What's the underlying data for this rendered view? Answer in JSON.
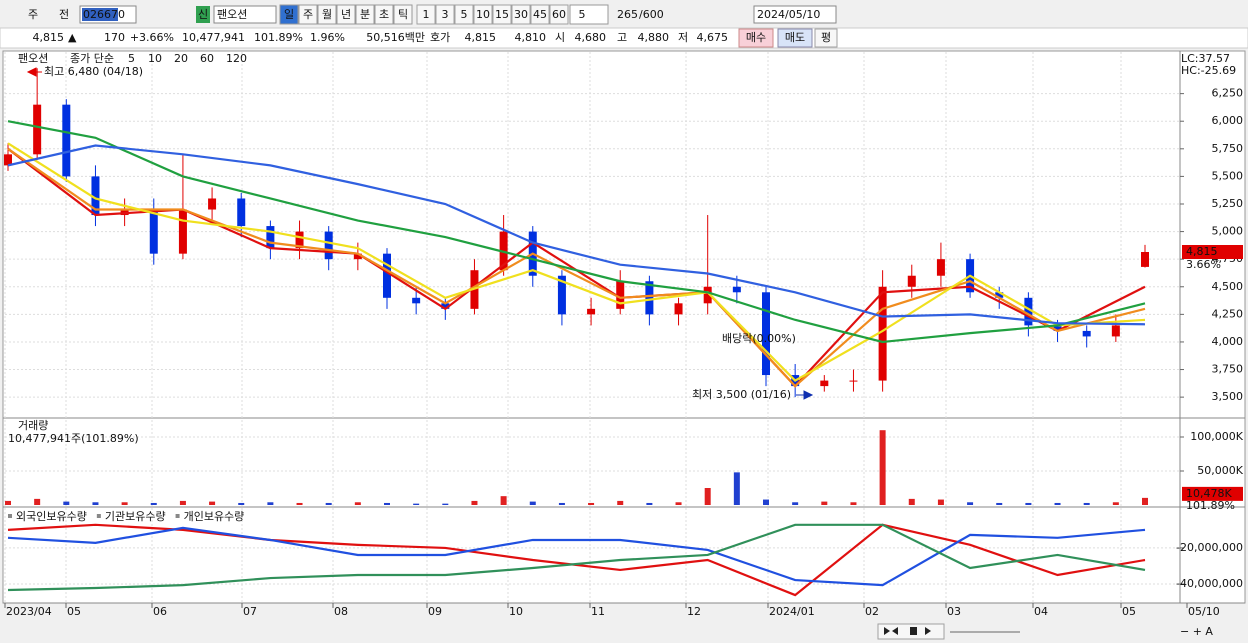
{
  "toolbar": {
    "market": "주",
    "prev": "전",
    "code": "026670",
    "badge": "신",
    "name": "팬오션",
    "periods": [
      "일",
      "주",
      "월",
      "년",
      "분",
      "초",
      "틱"
    ],
    "intervals": [
      "1",
      "3",
      "5",
      "10",
      "15",
      "30",
      "45",
      "60"
    ],
    "count": "5",
    "shown": "265",
    "total": "/600",
    "date": "2024/05/10"
  },
  "quote": {
    "price": "4,815",
    "arrow": "▲",
    "change": "170",
    "change_pct": "+3.66%",
    "volume": "10,477,941",
    "volume_ratio": "101.89%",
    "turnover": "1.96%",
    "amount": "50,516백만",
    "bid_label": "호가",
    "ask": "4,815",
    "bid": "4,810",
    "open_label": "시",
    "open": "4,680",
    "high_label": "고",
    "high": "4,880",
    "low_label": "저",
    "low": "4,675",
    "buy": "매수",
    "sell": "매도",
    "avg": "평"
  },
  "x_axis": {
    "labels": [
      "2023/04",
      "05",
      "06",
      "07",
      "08",
      "09",
      "10",
      "11",
      "12",
      "2024/01",
      "02",
      "03",
      "04",
      "05",
      "05/10"
    ]
  },
  "chart_data": [
    {
      "type": "candlestick",
      "title": "팬오션",
      "ma_label": "종가 단순",
      "open": [
        5600,
        5700,
        6150,
        5500,
        5150,
        5200,
        4800,
        5200,
        5300,
        5050,
        4850,
        5000,
        4750,
        4800,
        4400,
        4350,
        4300,
        4650,
        5000,
        4600,
        4250,
        4300,
        4550,
        4250,
        4350,
        4500,
        4450,
        3700,
        3600,
        3650,
        3650,
        4500,
        4600,
        4750,
        4450,
        4400,
        4150,
        4100,
        4050,
        4680
      ],
      "high": [
        5800,
        6480,
        6200,
        5600,
        5300,
        5300,
        5700,
        5400,
        5350,
        5100,
        5100,
        5050,
        4900,
        4850,
        4500,
        4400,
        4750,
        5150,
        5050,
        4650,
        4400,
        4650,
        4600,
        4400,
        5150,
        4600,
        4500,
        3800,
        3700,
        3750,
        4650,
        4700,
        4900,
        4800,
        4500,
        4450,
        4200,
        4150,
        4250,
        4880
      ],
      "low": [
        5550,
        5650,
        5450,
        5050,
        5050,
        4700,
        4750,
        5100,
        4950,
        4750,
        4750,
        4650,
        4650,
        4300,
        4250,
        4200,
        4250,
        4600,
        4500,
        4150,
        4150,
        4250,
        4150,
        4150,
        4250,
        4350,
        3600,
        3500,
        3550,
        3550,
        3550,
        4400,
        4500,
        4400,
        4300,
        4050,
        4000,
        3950,
        4000,
        4675
      ],
      "close": [
        5700,
        6150,
        5500,
        5150,
        5200,
        4800,
        5200,
        5300,
        5050,
        4850,
        5000,
        4750,
        4800,
        4400,
        4350,
        4300,
        4650,
        5000,
        4600,
        4250,
        4300,
        4550,
        4250,
        4350,
        4500,
        4450,
        3700,
        3600,
        3650,
        3650,
        4500,
        4600,
        4750,
        4450,
        4400,
        4150,
        4100,
        4050,
        4150,
        4815
      ],
      "up_color": "#e00000",
      "down_color": "#0030e0",
      "moving_averages": [
        {
          "name": "5",
          "color": "#e01010",
          "values": [
            5750,
            5150,
            5200,
            4850,
            4800,
            4300,
            4900,
            4400,
            4450,
            3600,
            4450,
            4500,
            4100,
            4500
          ]
        },
        {
          "name": "10",
          "color": "#f08c1e",
          "values": [
            5750,
            5200,
            5200,
            4900,
            4800,
            4350,
            4800,
            4400,
            4450,
            3600,
            4300,
            4550,
            4100,
            4300
          ]
        },
        {
          "name": "20",
          "color": "#f0e01e",
          "values": [
            5800,
            5300,
            5100,
            5000,
            4850,
            4400,
            4650,
            4350,
            4450,
            3650,
            4100,
            4600,
            4150,
            4200
          ]
        },
        {
          "name": "60",
          "color": "#20a040",
          "values": [
            6000,
            5850,
            5500,
            5300,
            5100,
            4950,
            4750,
            4550,
            4450,
            4200,
            4000,
            4080,
            4150,
            4350
          ]
        },
        {
          "name": "120",
          "color": "#3060e0",
          "values": [
            5600,
            5780,
            5700,
            5600,
            5430,
            5250,
            4900,
            4700,
            4620,
            4450,
            4230,
            4250,
            4170,
            4160
          ]
        }
      ],
      "ylim": [
        3320,
        6600
      ],
      "yticks": [
        {
          "value": 3500,
          "label": "3,500"
        },
        {
          "value": 3750,
          "label": "3,750"
        },
        {
          "value": 4000,
          "label": "4,000"
        },
        {
          "value": 4250,
          "label": "4,250"
        },
        {
          "value": 4500,
          "label": "4,500"
        },
        {
          "value": 4750,
          "label": "4,750"
        },
        {
          "value": 5000,
          "label": "5,000"
        },
        {
          "value": 5250,
          "label": "5,250"
        },
        {
          "value": 5500,
          "label": "5,500"
        },
        {
          "value": 5750,
          "label": "5,750"
        },
        {
          "value": 6000,
          "label": "6,000"
        },
        {
          "value": 6250,
          "label": "6,250"
        }
      ],
      "annotations": {
        "high": "최고 6,480 (04/18)",
        "low": "최저 3,500 (01/16)",
        "dividend": "배당락(0.00%)",
        "lc": "LC:37.57",
        "hc": "HC:-25.69",
        "last_price": "4,815",
        "last_pct": "3.66%"
      }
    },
    {
      "type": "bar",
      "title": "거래량",
      "subtitle": "10,477,941주(101.89%)",
      "color": "#e02020",
      "values": [
        6000,
        9000,
        5000,
        4000,
        4000,
        3000,
        6000,
        5000,
        3000,
        4000,
        3000,
        3000,
        4000,
        3000,
        2000,
        2000,
        6000,
        13000,
        5000,
        3000,
        3000,
        6000,
        3000,
        4000,
        25000,
        48000,
        8000,
        4000,
        5000,
        4000,
        110000,
        9000,
        8000,
        4000,
        3000,
        3000,
        3000,
        3000,
        4000,
        10478
      ],
      "ylim": [
        0,
        125000
      ],
      "yticks": [
        {
          "value": 50000,
          "label": "50,000K"
        },
        {
          "value": 100000,
          "label": "100,000K"
        }
      ],
      "last_label": "10,478K",
      "last_pct": "101.89%"
    },
    {
      "type": "line",
      "ylim": [
        -50500000,
        1000000
      ],
      "yticks": [
        {
          "value": -40000000,
          "label": "-40,000,000"
        },
        {
          "value": -20000000,
          "label": "-20,000,000"
        }
      ],
      "series": [
        {
          "name": "외국인보유수량",
          "color": "#e01010",
          "values": [
            -10000000,
            -7200000,
            -10000000,
            -15600000,
            -18300000,
            -20000000,
            -26700000,
            -32200000,
            -26700000,
            -46100000,
            -7200000,
            -18300000,
            -35000000,
            -26700000
          ]
        },
        {
          "name": "기관보유수량",
          "color": "#2050e0",
          "values": [
            -14400000,
            -17200000,
            -8900000,
            -15600000,
            -23900000,
            -23900000,
            -15600000,
            -15600000,
            -21100000,
            -37800000,
            -40600000,
            -12800000,
            -14400000,
            -10000000
          ]
        },
        {
          "name": "개인보유수량",
          "color": "#30905a",
          "values": [
            -43300000,
            -42200000,
            -40600000,
            -36700000,
            -35000000,
            -35000000,
            -31100000,
            -26700000,
            -23900000,
            -7200000,
            -7200000,
            -31100000,
            -23900000,
            -32200000
          ]
        }
      ]
    }
  ]
}
